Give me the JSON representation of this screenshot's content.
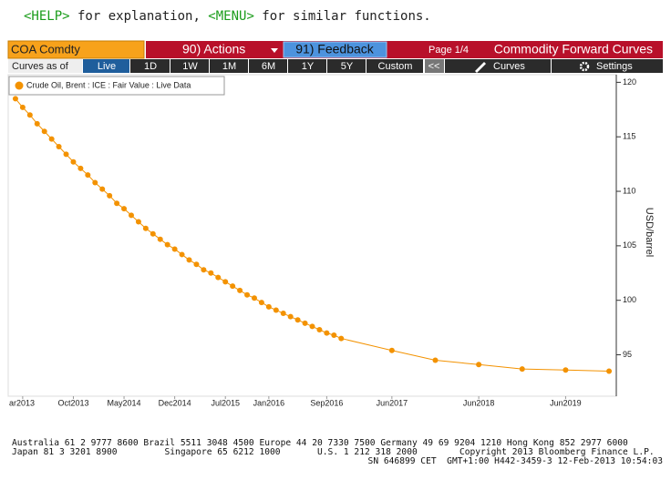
{
  "header": {
    "parts": [
      "<HELP>",
      " for explanation, ",
      "<MENU>",
      " for similar functions."
    ]
  },
  "toolbar": {
    "security": "COA Comdty",
    "actions": "90) Actions",
    "feedback": "91) Feedback",
    "page": "Page 1/4",
    "title": "Commodity Forward Curves",
    "curves_as_of": "Curves as of",
    "buttons": [
      "Live",
      "1D",
      "1W",
      "1M",
      "6M",
      "1Y",
      "5Y",
      "Custom"
    ],
    "collapse": "<<",
    "curves": "Curves",
    "settings": "Settings"
  },
  "chart_data": {
    "type": "line",
    "y_label": "USD/barrel",
    "x": [
      "2013-02",
      "2013-03",
      "2013-04",
      "2013-05",
      "2013-06",
      "2013-07",
      "2013-08",
      "2013-09",
      "2013-10",
      "2013-11",
      "2013-12",
      "2014-01",
      "2014-02",
      "2014-03",
      "2014-04",
      "2014-05",
      "2014-06",
      "2014-07",
      "2014-08",
      "2014-09",
      "2014-10",
      "2014-11",
      "2014-12",
      "2015-01",
      "2015-02",
      "2015-03",
      "2015-04",
      "2015-05",
      "2015-06",
      "2015-07",
      "2015-08",
      "2015-09",
      "2015-10",
      "2015-11",
      "2015-12",
      "2016-01",
      "2016-02",
      "2016-03",
      "2016-04",
      "2016-05",
      "2016-06",
      "2016-07",
      "2016-08",
      "2016-09",
      "2016-10",
      "2016-11",
      "2017-06",
      "2017-12",
      "2018-06",
      "2018-12",
      "2019-06",
      "2019-12"
    ],
    "series": [
      {
        "name": "Crude Oil, Brent : ICE : Fair Value : Live Data",
        "color": "#f39200",
        "values": [
          118.5,
          117.7,
          117.0,
          116.2,
          115.5,
          114.8,
          114.1,
          113.4,
          112.7,
          112.1,
          111.5,
          110.8,
          110.2,
          109.6,
          108.9,
          108.4,
          107.8,
          107.2,
          106.6,
          106.1,
          105.6,
          105.1,
          104.7,
          104.2,
          103.7,
          103.3,
          102.8,
          102.5,
          102.1,
          101.7,
          101.3,
          100.9,
          100.5,
          100.2,
          99.8,
          99.4,
          99.1,
          98.8,
          98.5,
          98.2,
          97.9,
          97.6,
          97.3,
          97.0,
          96.8,
          96.5,
          95.4,
          94.5,
          94.1,
          93.7,
          93.6,
          93.5
        ]
      }
    ],
    "xlim": [
      "2013-01",
      "2020-01"
    ],
    "xticks": [
      {
        "value": "2013-03",
        "label": "ar2013"
      },
      {
        "value": "2013-10",
        "label": "Oct2013"
      },
      {
        "value": "2014-05",
        "label": "May2014"
      },
      {
        "value": "2014-12",
        "label": "Dec2014"
      },
      {
        "value": "2015-07",
        "label": "Jul2015"
      },
      {
        "value": "2016-01",
        "label": "Jan2016"
      },
      {
        "value": "2016-09",
        "label": "Sep2016"
      },
      {
        "value": "2017-06",
        "label": "Jun2017"
      },
      {
        "value": "2018-06",
        "label": "Jun2018"
      },
      {
        "value": "2019-06",
        "label": "Jun2019"
      }
    ],
    "ylim": [
      91.2,
      120.7
    ],
    "yticks": [
      95,
      100,
      105,
      110,
      115,
      120
    ],
    "grid": false
  },
  "footer": [
    "Australia 61 2 9777 8600 Brazil 5511 3048 4500 Europe 44 20 7330 7500 Germany 49 69 9204 1210 Hong Kong 852 2977 6000",
    "Japan 81 3 3201 8900         Singapore 65 6212 1000       U.S. 1 212 318 2000        Copyright 2013 Bloomberg Finance L.P.",
    "SN 646899 CET  GMT+1:00 H442-3459-3 12-Feb-2013 10:54:03"
  ]
}
